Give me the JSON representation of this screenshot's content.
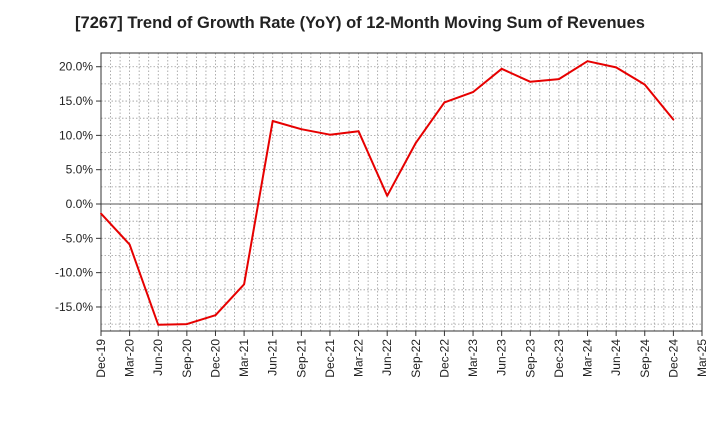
{
  "chart_data": {
    "type": "line",
    "title": "[7267]  Trend of Growth Rate (YoY) of 12-Month Moving Sum of Revenues",
    "xlabel": "",
    "ylabel": "",
    "x_tick_labels": [
      "Dec-19",
      "Mar-20",
      "Jun-20",
      "Sep-20",
      "Dec-20",
      "Mar-21",
      "Jun-21",
      "Sep-21",
      "Dec-21",
      "Mar-22",
      "Jun-22",
      "Sep-22",
      "Dec-22",
      "Mar-23",
      "Jun-23",
      "Sep-23",
      "Dec-23",
      "Mar-24",
      "Jun-24",
      "Sep-24",
      "Dec-24",
      "Mar-25"
    ],
    "y_ticks": [
      20,
      15,
      10,
      5,
      0,
      -5,
      -10,
      -15
    ],
    "y_tick_labels": [
      "20.0%",
      "15.0%",
      "10.0%",
      "5.0%",
      "0.0%",
      "-5.0%",
      "-10.0%",
      "-15.0%"
    ],
    "ylim": [
      -18.5,
      22
    ],
    "grid": true,
    "series": [
      {
        "color": "#e60000",
        "x": [
          "Dec-19",
          "Mar-20",
          "Jun-20",
          "Sep-20",
          "Dec-20",
          "Mar-21",
          "Jun-21",
          "Sep-21",
          "Dec-21",
          "Mar-22",
          "Jun-22",
          "Sep-22",
          "Dec-22",
          "Mar-23",
          "Jun-23",
          "Sep-23",
          "Dec-23",
          "Mar-24",
          "Jun-24",
          "Sep-24",
          "Dec-24"
        ],
        "values": [
          -1.4,
          -5.9,
          -17.6,
          -17.5,
          -16.2,
          -11.7,
          12.1,
          10.9,
          10.1,
          10.6,
          1.2,
          8.9,
          14.8,
          16.3,
          19.7,
          17.8,
          18.2,
          20.8,
          19.9,
          17.4,
          12.3
        ]
      }
    ]
  }
}
